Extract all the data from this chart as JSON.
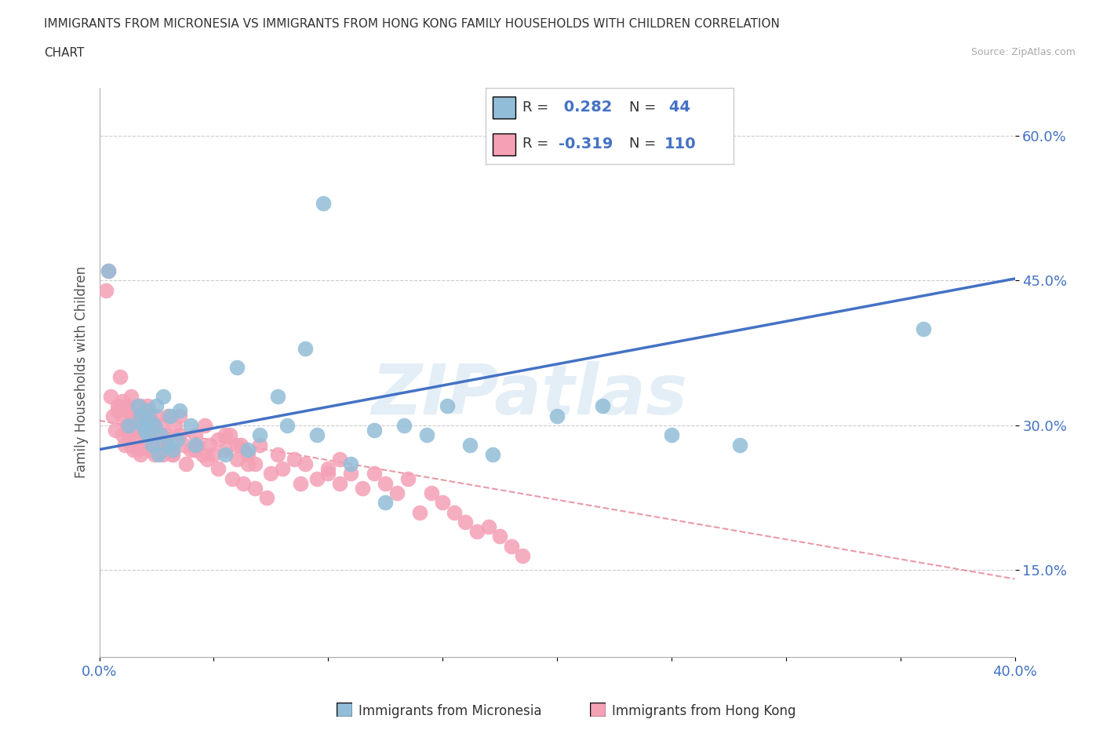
{
  "title_line1": "IMMIGRANTS FROM MICRONESIA VS IMMIGRANTS FROM HONG KONG FAMILY HOUSEHOLDS WITH CHILDREN CORRELATION",
  "title_line2": "CHART",
  "source": "Source: ZipAtlas.com",
  "ylabel": "Family Households with Children",
  "x_min": 0.0,
  "x_max": 0.4,
  "y_min": 0.06,
  "y_max": 0.65,
  "micronesia_color": "#92bdd8",
  "hongkong_color": "#f4a0b5",
  "trend_micronesia_color": "#4472c4",
  "trend_hongkong_color": "#e07080",
  "watermark": "ZIPatlas",
  "legend_micronesia": "Immigrants from Micronesia",
  "legend_hongkong": "Immigrants from Hong Kong",
  "y_ticks": [
    0.15,
    0.3,
    0.45,
    0.6
  ],
  "y_tick_labels": [
    "15.0%",
    "30.0%",
    "45.0%",
    "60.0%"
  ],
  "mic_trend_x0": 0.0,
  "mic_trend_y0": 0.275,
  "mic_trend_x1": 0.4,
  "mic_trend_y1": 0.452,
  "hk_trend_x0": 0.0,
  "hk_trend_y0": 0.305,
  "hk_trend_x1": 0.195,
  "hk_trend_y1": 0.225,
  "micronesia_x": [
    0.004,
    0.013,
    0.017,
    0.018,
    0.019,
    0.02,
    0.021,
    0.021,
    0.022,
    0.023,
    0.024,
    0.025,
    0.026,
    0.027,
    0.028,
    0.03,
    0.031,
    0.032,
    0.034,
    0.035,
    0.04,
    0.042,
    0.055,
    0.06,
    0.065,
    0.07,
    0.078,
    0.082,
    0.09,
    0.095,
    0.098,
    0.11,
    0.12,
    0.125,
    0.133,
    0.143,
    0.152,
    0.162,
    0.172,
    0.2,
    0.22,
    0.25,
    0.28,
    0.36
  ],
  "micronesia_y": [
    0.46,
    0.3,
    0.32,
    0.31,
    0.3,
    0.295,
    0.29,
    0.315,
    0.305,
    0.28,
    0.3,
    0.32,
    0.27,
    0.29,
    0.33,
    0.28,
    0.31,
    0.275,
    0.285,
    0.315,
    0.3,
    0.28,
    0.27,
    0.36,
    0.275,
    0.29,
    0.33,
    0.3,
    0.38,
    0.29,
    0.53,
    0.26,
    0.295,
    0.22,
    0.3,
    0.29,
    0.32,
    0.28,
    0.27,
    0.31,
    0.32,
    0.29,
    0.28,
    0.4
  ],
  "hongkong_x": [
    0.003,
    0.004,
    0.005,
    0.006,
    0.007,
    0.008,
    0.008,
    0.009,
    0.01,
    0.01,
    0.01,
    0.011,
    0.012,
    0.012,
    0.013,
    0.013,
    0.014,
    0.014,
    0.015,
    0.015,
    0.015,
    0.016,
    0.016,
    0.017,
    0.017,
    0.018,
    0.018,
    0.019,
    0.02,
    0.02,
    0.02,
    0.021,
    0.021,
    0.022,
    0.022,
    0.023,
    0.024,
    0.025,
    0.025,
    0.026,
    0.027,
    0.028,
    0.029,
    0.03,
    0.03,
    0.032,
    0.033,
    0.035,
    0.035,
    0.037,
    0.04,
    0.042,
    0.043,
    0.045,
    0.046,
    0.048,
    0.05,
    0.052,
    0.055,
    0.057,
    0.06,
    0.062,
    0.065,
    0.068,
    0.07,
    0.075,
    0.078,
    0.08,
    0.085,
    0.088,
    0.09,
    0.095,
    0.1,
    0.105,
    0.11,
    0.115,
    0.12,
    0.125,
    0.13,
    0.135,
    0.14,
    0.145,
    0.15,
    0.155,
    0.16,
    0.165,
    0.17,
    0.175,
    0.18,
    0.185,
    0.1,
    0.105,
    0.055,
    0.06,
    0.065,
    0.012,
    0.015,
    0.018,
    0.022,
    0.025,
    0.028,
    0.032,
    0.038,
    0.042,
    0.047,
    0.052,
    0.058,
    0.063,
    0.068,
    0.073
  ],
  "hongkong_y": [
    0.44,
    0.46,
    0.33,
    0.31,
    0.295,
    0.315,
    0.32,
    0.35,
    0.29,
    0.31,
    0.325,
    0.28,
    0.3,
    0.32,
    0.295,
    0.29,
    0.28,
    0.33,
    0.275,
    0.31,
    0.3,
    0.285,
    0.31,
    0.275,
    0.3,
    0.27,
    0.32,
    0.29,
    0.28,
    0.31,
    0.3,
    0.285,
    0.32,
    0.275,
    0.31,
    0.3,
    0.27,
    0.29,
    0.31,
    0.28,
    0.3,
    0.27,
    0.29,
    0.28,
    0.31,
    0.27,
    0.3,
    0.29,
    0.31,
    0.28,
    0.275,
    0.29,
    0.28,
    0.27,
    0.3,
    0.28,
    0.27,
    0.285,
    0.275,
    0.29,
    0.265,
    0.28,
    0.27,
    0.26,
    0.28,
    0.25,
    0.27,
    0.255,
    0.265,
    0.24,
    0.26,
    0.245,
    0.255,
    0.24,
    0.25,
    0.235,
    0.25,
    0.24,
    0.23,
    0.245,
    0.21,
    0.23,
    0.22,
    0.21,
    0.2,
    0.19,
    0.195,
    0.185,
    0.175,
    0.165,
    0.25,
    0.265,
    0.29,
    0.28,
    0.26,
    0.315,
    0.305,
    0.295,
    0.285,
    0.295,
    0.28,
    0.27,
    0.26,
    0.275,
    0.265,
    0.255,
    0.245,
    0.24,
    0.235,
    0.225
  ]
}
